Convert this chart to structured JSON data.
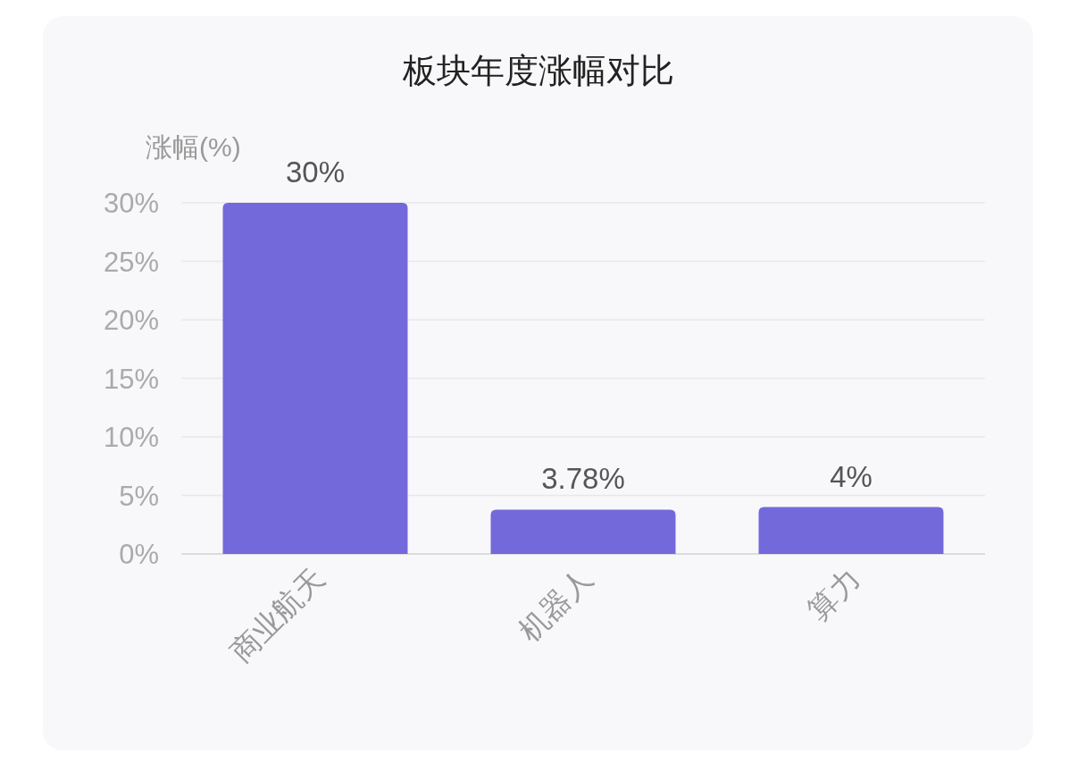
{
  "chart_data": {
    "type": "bar",
    "title": "板块年度涨幅对比",
    "ylabel": "涨幅(%)",
    "categories": [
      "商业航天",
      "机器人",
      "算力"
    ],
    "values": [
      30,
      3.78,
      4
    ],
    "value_labels": [
      "30%",
      "3.78%",
      "4%"
    ],
    "color": "#7369db",
    "ylim": [
      0,
      30
    ],
    "yticks": [
      {
        "value": 0,
        "label": "0%"
      },
      {
        "value": 5,
        "label": "5%"
      },
      {
        "value": 10,
        "label": "10%"
      },
      {
        "value": 15,
        "label": "15%"
      },
      {
        "value": 20,
        "label": "20%"
      },
      {
        "value": 25,
        "label": "25%"
      },
      {
        "value": 30,
        "label": "30%"
      }
    ],
    "grid": "y"
  }
}
